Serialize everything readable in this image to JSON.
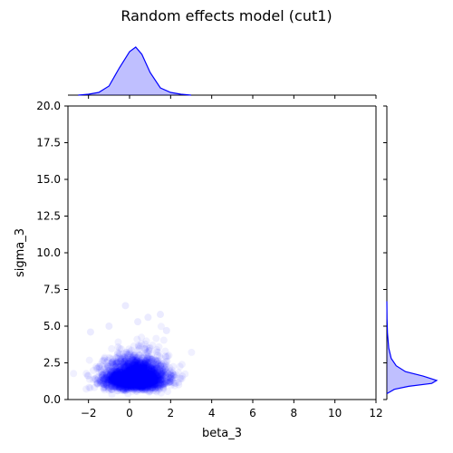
{
  "chart_data": {
    "type": "scatter",
    "title": "Random effects model (cut1)",
    "xlabel": "beta_3",
    "ylabel": "sigma_3",
    "xlim": [
      -3,
      12
    ],
    "ylim": [
      0,
      20
    ],
    "xticks": [
      "−2",
      "0",
      "2",
      "4",
      "6",
      "8",
      "10",
      "12"
    ],
    "xtick_values": [
      -2,
      0,
      2,
      4,
      6,
      8,
      10,
      12
    ],
    "yticks": [
      "0.0",
      "2.5",
      "5.0",
      "7.5",
      "10.0",
      "12.5",
      "15.0",
      "17.5",
      "20.0"
    ],
    "ytick_values": [
      0,
      2.5,
      5,
      7.5,
      10,
      12.5,
      15,
      17.5,
      20
    ],
    "grid": false,
    "color": "#0000ff",
    "point_alpha": 0.06,
    "samples": {
      "x_mean": 0.3,
      "x_sd": 0.75,
      "y_center": 1.5,
      "y_spread": 0.35,
      "n": 3000
    },
    "outliers": [
      {
        "x": -0.2,
        "y": 6.4
      },
      {
        "x": 0.9,
        "y": 5.6
      },
      {
        "x": -1.9,
        "y": 4.6
      },
      {
        "x": 1.8,
        "y": 4.7
      },
      {
        "x": 0.4,
        "y": 5.3
      },
      {
        "x": -1.0,
        "y": 5.0
      },
      {
        "x": 1.5,
        "y": 5.8
      }
    ],
    "marginal_x": {
      "type": "kde",
      "x": [
        -2.5,
        -2.0,
        -1.5,
        -1.0,
        -0.5,
        0.0,
        0.3,
        0.6,
        1.0,
        1.5,
        2.0,
        2.5,
        3.0
      ],
      "density": [
        0.0,
        0.01,
        0.03,
        0.1,
        0.3,
        0.48,
        0.53,
        0.45,
        0.25,
        0.08,
        0.03,
        0.01,
        0.0
      ]
    },
    "marginal_y": {
      "type": "kde",
      "y": [
        0.4,
        0.7,
        0.9,
        1.1,
        1.3,
        1.6,
        1.9,
        2.3,
        2.8,
        3.5,
        4.5,
        5.5,
        6.7
      ],
      "density": [
        0.0,
        0.12,
        0.35,
        0.72,
        0.8,
        0.58,
        0.3,
        0.15,
        0.07,
        0.03,
        0.01,
        0.003,
        0.0
      ]
    }
  }
}
